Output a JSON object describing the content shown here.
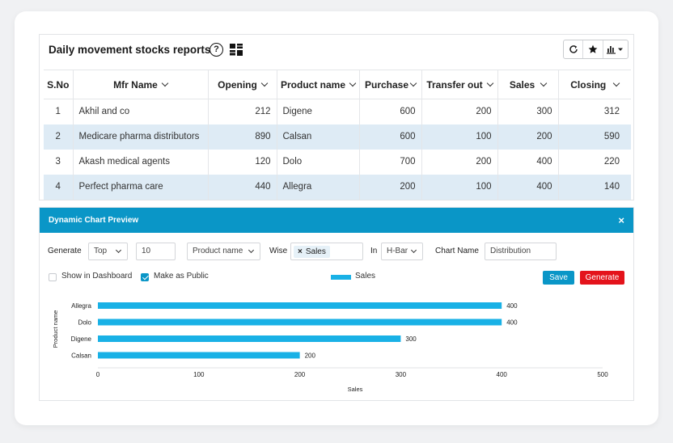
{
  "report": {
    "title": "Daily movement stocks reports",
    "help_symbol": "?"
  },
  "table": {
    "headers": [
      "S.No",
      "Mfr Name",
      "Opening",
      "Product name",
      "Purchase",
      "Transfer out",
      "Sales",
      "Closing"
    ],
    "rows": [
      {
        "sno": "1",
        "mfr": "Akhil and co",
        "opening": "212",
        "product": "Digene",
        "purchase": "600",
        "transfer": "200",
        "sales": "300",
        "closing": "312"
      },
      {
        "sno": "2",
        "mfr": "Medicare pharma distributors",
        "opening": "890",
        "product": "Calsan",
        "purchase": "600",
        "transfer": "100",
        "sales": "200",
        "closing": "590"
      },
      {
        "sno": "3",
        "mfr": "Akash medical agents",
        "opening": "120",
        "product": "Dolo",
        "purchase": "700",
        "transfer": "200",
        "sales": "400",
        "closing": "220"
      },
      {
        "sno": "4",
        "mfr": "Perfect pharma care",
        "opening": "440",
        "product": "Allegra",
        "purchase": "200",
        "transfer": "100",
        "sales": "400",
        "closing": "140"
      }
    ]
  },
  "preview": {
    "title": "Dynamic Chart Preview",
    "close": "×",
    "generate_label": "Generate",
    "top_value": "Top",
    "count_value": "10",
    "field_value": "Product name",
    "wise_label": "Wise",
    "wise_tag": "Sales",
    "tag_remove": "×",
    "in_label": "In",
    "chart_type_value": "H-Bar",
    "chart_name_label": "Chart Name",
    "chart_name_value": "Distribution",
    "show_dashboard_label": "Show in Dashboard",
    "show_dashboard_checked": false,
    "make_public_label": "Make as Public",
    "make_public_checked": true,
    "save_label": "Save",
    "generate_button_label": "Generate"
  },
  "colors": {
    "accent": "#0a96c7",
    "bar": "#19b1e6",
    "generate_button": "#e4131b",
    "row_highlight": "#deebf5"
  },
  "chart_data": {
    "type": "bar",
    "orientation": "horizontal",
    "categories": [
      "Allegra",
      "Dolo",
      "Digene",
      "Calsan"
    ],
    "series": [
      {
        "name": "Sales",
        "values": [
          400,
          400,
          300,
          200
        ]
      }
    ],
    "xlabel": "Sales",
    "ylabel": "Product name",
    "xlim": [
      0,
      500
    ],
    "xticks": [
      0,
      100,
      200,
      300,
      400,
      500
    ],
    "legend": "top-center",
    "grid": false
  }
}
